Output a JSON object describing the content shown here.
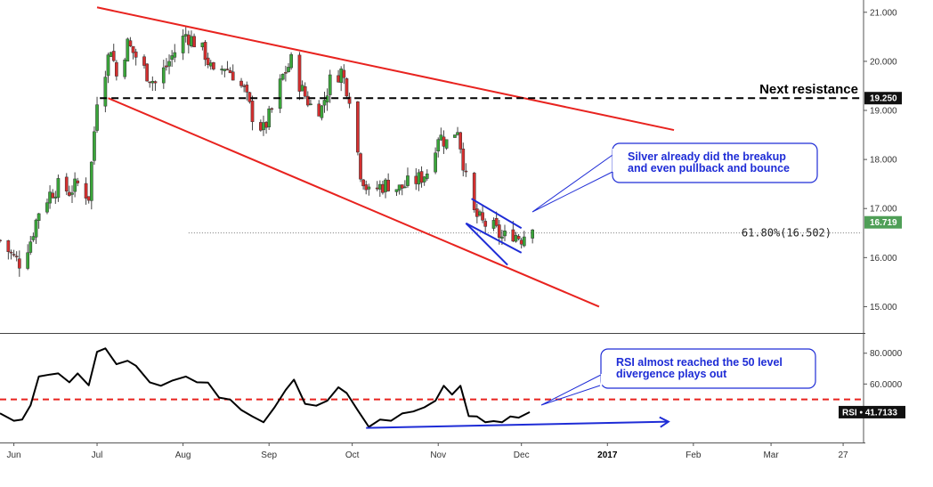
{
  "colors": {
    "up_candle": "#3aa63a",
    "down_candle": "#d42f2f",
    "trendline": "#e8231f",
    "callout": "#1e2cd6",
    "resistance": "#000000",
    "rsi_line": "#000000",
    "rsi_level": "#e8231f",
    "price_badge": "#4f9f57"
  },
  "chart_data": [
    {
      "type": "candlestick",
      "title": "",
      "y_axis": {
        "position": "right",
        "range": [
          14.5,
          21.25
        ],
        "ticks": [
          "21.000",
          "20.000",
          "19.000",
          "18.000",
          "17.000",
          "16.000",
          "15.000"
        ]
      },
      "x_axis": {
        "range": [
          "2016-05-27",
          "2017-04-04"
        ],
        "ticks": [
          "Jun",
          "Jul",
          "Aug",
          "Sep",
          "Oct",
          "Nov",
          "Dec",
          "2017",
          "Feb",
          "Mar",
          "27"
        ],
        "tick_dates": [
          "2016-06-01",
          "2016-07-01",
          "2016-08-01",
          "2016-09-01",
          "2016-10-01",
          "2016-11-01",
          "2016-12-01",
          "2017-01-01",
          "2017-02-01",
          "2017-03-01",
          "2017-03-27"
        ]
      },
      "close_path": [
        [
          "2016-05-27",
          16.35
        ],
        [
          "2016-06-01",
          16.0
        ],
        [
          "2016-06-03",
          15.9
        ],
        [
          "2016-06-07",
          16.35
        ],
        [
          "2016-06-10",
          16.95
        ],
        [
          "2016-06-14",
          17.3
        ],
        [
          "2016-06-17",
          17.45
        ],
        [
          "2016-06-21",
          17.35
        ],
        [
          "2016-06-24",
          17.5
        ],
        [
          "2016-06-28",
          17.25
        ],
        [
          "2016-07-01",
          19.25
        ],
        [
          "2016-07-04",
          19.85
        ],
        [
          "2016-07-06",
          20.3
        ],
        [
          "2016-07-08",
          19.7
        ],
        [
          "2016-07-12",
          20.35
        ],
        [
          "2016-07-15",
          20.1
        ],
        [
          "2016-07-19",
          19.75
        ],
        [
          "2016-07-22",
          19.55
        ],
        [
          "2016-07-26",
          19.9
        ],
        [
          "2016-07-29",
          20.2
        ],
        [
          "2016-08-02",
          20.55
        ],
        [
          "2016-08-05",
          20.4
        ],
        [
          "2016-08-09",
          20.15
        ],
        [
          "2016-08-12",
          19.7
        ],
        [
          "2016-08-16",
          19.9
        ],
        [
          "2016-08-19",
          19.75
        ],
        [
          "2016-08-23",
          19.4
        ],
        [
          "2016-08-26",
          18.9
        ],
        [
          "2016-08-30",
          18.6
        ],
        [
          "2016-09-02",
          19.0
        ],
        [
          "2016-09-06",
          19.7
        ],
        [
          "2016-09-09",
          20.0
        ],
        [
          "2016-09-13",
          19.4
        ],
        [
          "2016-09-16",
          19.1
        ],
        [
          "2016-09-20",
          19.05
        ],
        [
          "2016-09-23",
          19.6
        ],
        [
          "2016-09-27",
          19.8
        ],
        [
          "2016-09-30",
          19.3
        ],
        [
          "2016-10-04",
          17.75
        ],
        [
          "2016-10-07",
          17.3
        ],
        [
          "2016-10-11",
          17.45
        ],
        [
          "2016-10-14",
          17.5
        ],
        [
          "2016-10-18",
          17.4
        ],
        [
          "2016-10-21",
          17.5
        ],
        [
          "2016-10-25",
          17.6
        ],
        [
          "2016-10-28",
          17.75
        ],
        [
          "2016-11-01",
          18.5
        ],
        [
          "2016-11-04",
          18.35
        ],
        [
          "2016-11-08",
          18.65
        ],
        [
          "2016-11-11",
          17.6
        ],
        [
          "2016-11-14",
          16.9
        ],
        [
          "2016-11-17",
          16.7
        ],
        [
          "2016-11-21",
          16.6
        ],
        [
          "2016-11-24",
          16.4
        ],
        [
          "2016-11-28",
          16.5
        ],
        [
          "2016-12-01",
          16.4
        ],
        [
          "2016-12-05",
          16.72
        ]
      ],
      "last_value": "16.719",
      "annotations": {
        "resistance": {
          "value": 19.25,
          "label": "Next resistance",
          "badge": "19.250",
          "from": "2016-07-02"
        },
        "fib": {
          "value": 16.502,
          "label": "61.80%(16.502)",
          "from": "2016-08-03"
        },
        "callout": {
          "lines": [
            "Silver already did the breakup",
            "and even pullback and bounce"
          ]
        },
        "upper_trendline": {
          "from": [
            "2016-07-01",
            21.1
          ],
          "to": [
            "2017-01-25",
            18.6
          ]
        },
        "lower_trendline": {
          "from": [
            "2016-07-05",
            19.25
          ],
          "to": [
            "2016-12-29",
            15.0
          ]
        },
        "flag_upper": {
          "from": [
            "2016-11-13",
            17.2
          ],
          "to": [
            "2016-12-01",
            16.6
          ]
        },
        "flag_lower": {
          "from": [
            "2016-11-11",
            16.7
          ],
          "to": [
            "2016-12-01",
            16.1
          ]
        },
        "flag_low_touch": {
          "from": [
            "2016-11-11",
            16.7
          ],
          "to": [
            "2016-11-26",
            15.85
          ]
        }
      }
    },
    {
      "type": "line",
      "name": "RSI",
      "y_axis": {
        "position": "right",
        "range": [
          22,
          92
        ],
        "ticks": [
          "80.0000",
          "60.0000"
        ]
      },
      "values": [
        [
          "2016-05-27",
          41
        ],
        [
          "2016-06-01",
          37
        ],
        [
          "2016-06-04",
          36
        ],
        [
          "2016-06-07",
          47
        ],
        [
          "2016-06-10",
          64
        ],
        [
          "2016-06-14",
          67
        ],
        [
          "2016-06-17",
          66
        ],
        [
          "2016-06-21",
          62
        ],
        [
          "2016-06-24",
          66
        ],
        [
          "2016-06-28",
          60
        ],
        [
          "2016-07-01",
          80
        ],
        [
          "2016-07-04",
          84
        ],
        [
          "2016-07-08",
          72
        ],
        [
          "2016-07-12",
          76
        ],
        [
          "2016-07-15",
          71
        ],
        [
          "2016-07-20",
          62
        ],
        [
          "2016-07-24",
          58
        ],
        [
          "2016-07-28",
          63
        ],
        [
          "2016-08-02",
          64
        ],
        [
          "2016-08-06",
          62
        ],
        [
          "2016-08-10",
          60
        ],
        [
          "2016-08-14",
          52
        ],
        [
          "2016-08-18",
          49
        ],
        [
          "2016-08-22",
          44
        ],
        [
          "2016-08-26",
          38
        ],
        [
          "2016-08-30",
          36
        ],
        [
          "2016-09-03",
          44
        ],
        [
          "2016-09-07",
          57
        ],
        [
          "2016-09-10",
          62
        ],
        [
          "2016-09-14",
          48
        ],
        [
          "2016-09-18",
          45
        ],
        [
          "2016-09-22",
          50
        ],
        [
          "2016-09-26",
          57
        ],
        [
          "2016-09-29",
          55
        ],
        [
          "2016-10-03",
          42
        ],
        [
          "2016-10-07",
          33
        ],
        [
          "2016-10-11",
          36
        ],
        [
          "2016-10-15",
          37
        ],
        [
          "2016-10-19",
          40
        ],
        [
          "2016-10-23",
          43
        ],
        [
          "2016-10-27",
          44
        ],
        [
          "2016-10-31",
          50
        ],
        [
          "2016-11-03",
          58
        ],
        [
          "2016-11-06",
          54
        ],
        [
          "2016-11-09",
          58
        ],
        [
          "2016-11-12",
          40
        ],
        [
          "2016-11-15",
          38
        ],
        [
          "2016-11-18",
          36
        ],
        [
          "2016-11-21",
          35
        ],
        [
          "2016-11-24",
          36
        ],
        [
          "2016-11-27",
          38
        ],
        [
          "2016-11-30",
          39
        ],
        [
          "2016-12-04",
          41.7
        ]
      ],
      "last_value": "41.7133",
      "reference_line": 50,
      "callout": {
        "lines": [
          "RSI almost reached the 50 level",
          "divergence plays out"
        ]
      },
      "divergence_line": {
        "from": [
          "2016-10-06",
          31.5
        ],
        "to": [
          "2017-01-23",
          35.5
        ]
      }
    }
  ]
}
